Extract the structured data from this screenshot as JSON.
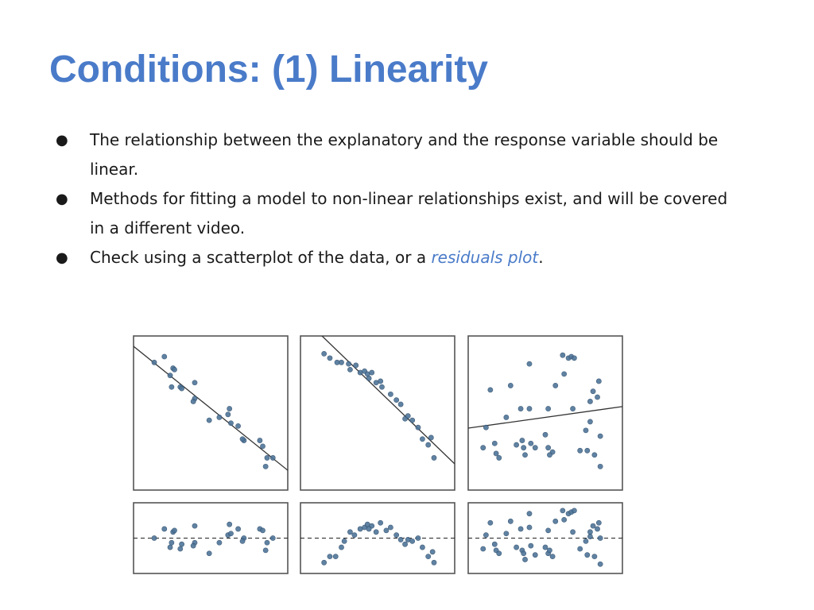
{
  "slide": {
    "title": "Conditions: (1) Linearity",
    "bullets": [
      {
        "text": "The relationship between the explanatory and the response variable should be linear."
      },
      {
        "text": "Methods for fitting a model to non-linear relationships exist, and will be covered in a different video."
      },
      {
        "text_before": "Check using a scatterplot of the data, or a ",
        "link_text": "residuals plot",
        "text_after": "."
      }
    ],
    "bullet_glyph": "●"
  },
  "colors": {
    "title": "#4a7bc9",
    "link": "#4a7bc9",
    "point_fill": "#4f7599",
    "frame": "#555555"
  },
  "chart_data": [
    {
      "type": "scatter",
      "panel": "scatter-linear",
      "title": "",
      "xlabel": "",
      "ylabel": "",
      "xlim": [
        0,
        10
      ],
      "ylim": [
        0,
        10
      ],
      "fit_line": [
        [
          0,
          9.35
        ],
        [
          10,
          1.3
        ]
      ],
      "points": [
        [
          1.1,
          8.5
        ],
        [
          1.8,
          8.9
        ],
        [
          2.2,
          7.6
        ],
        [
          2.4,
          8.1
        ],
        [
          2.5,
          8.0
        ],
        [
          2.3,
          6.8
        ],
        [
          2.9,
          6.8
        ],
        [
          3.0,
          6.7
        ],
        [
          3.9,
          7.1
        ],
        [
          3.9,
          6.0
        ],
        [
          3.8,
          5.8
        ],
        [
          4.9,
          4.5
        ],
        [
          5.6,
          4.7
        ],
        [
          6.2,
          4.9
        ],
        [
          6.3,
          5.3
        ],
        [
          6.4,
          4.3
        ],
        [
          6.9,
          4.1
        ],
        [
          7.3,
          3.1
        ],
        [
          7.2,
          3.2
        ],
        [
          8.4,
          3.1
        ],
        [
          8.6,
          2.7
        ],
        [
          8.9,
          1.9
        ],
        [
          9.3,
          1.9
        ],
        [
          8.8,
          1.3
        ]
      ],
      "grid": false
    },
    {
      "type": "scatter",
      "panel": "scatter-curved",
      "title": "",
      "xlabel": "",
      "ylabel": "",
      "xlim": [
        0,
        10
      ],
      "ylim": [
        0,
        10
      ],
      "fit_line": [
        [
          1.5,
          10
        ],
        [
          10,
          1.8
        ]
      ],
      "points": [
        [
          1.3,
          9.1
        ],
        [
          1.7,
          8.8
        ],
        [
          2.2,
          8.5
        ],
        [
          2.5,
          8.5
        ],
        [
          3.0,
          8.4
        ],
        [
          3.5,
          8.3
        ],
        [
          3.1,
          8.0
        ],
        [
          3.8,
          7.8
        ],
        [
          4.1,
          7.9
        ],
        [
          4.3,
          7.7
        ],
        [
          4.6,
          7.8
        ],
        [
          4.4,
          7.4
        ],
        [
          5.2,
          7.2
        ],
        [
          4.9,
          7.1
        ],
        [
          5.3,
          6.8
        ],
        [
          5.9,
          6.3
        ],
        [
          6.3,
          5.9
        ],
        [
          6.6,
          5.6
        ],
        [
          6.9,
          4.6
        ],
        [
          7.1,
          4.8
        ],
        [
          7.4,
          4.5
        ],
        [
          7.8,
          4.0
        ],
        [
          8.1,
          3.2
        ],
        [
          8.7,
          3.3
        ],
        [
          8.5,
          2.8
        ],
        [
          8.9,
          1.9
        ]
      ],
      "grid": false
    },
    {
      "type": "scatter",
      "panel": "scatter-random",
      "title": "",
      "xlabel": "",
      "ylabel": "",
      "xlim": [
        0,
        10
      ],
      "ylim": [
        0,
        10
      ],
      "fit_line": [
        [
          0,
          4.0
        ],
        [
          10,
          5.4
        ]
      ],
      "points": [
        [
          6.2,
          9.0
        ],
        [
          6.6,
          8.8
        ],
        [
          6.8,
          8.9
        ],
        [
          7.0,
          8.8
        ],
        [
          3.9,
          8.4
        ],
        [
          6.3,
          7.7
        ],
        [
          8.7,
          7.2
        ],
        [
          2.6,
          6.9
        ],
        [
          5.7,
          6.9
        ],
        [
          1.2,
          6.6
        ],
        [
          8.3,
          6.5
        ],
        [
          8.6,
          6.1
        ],
        [
          8.1,
          5.8
        ],
        [
          5.2,
          5.3
        ],
        [
          6.9,
          5.3
        ],
        [
          3.3,
          5.3
        ],
        [
          3.9,
          5.3
        ],
        [
          2.3,
          4.7
        ],
        [
          0.9,
          4.0
        ],
        [
          8.1,
          4.4
        ],
        [
          7.8,
          3.8
        ],
        [
          3.4,
          3.1
        ],
        [
          5.0,
          3.5
        ],
        [
          8.8,
          3.4
        ],
        [
          1.5,
          2.9
        ],
        [
          3.0,
          2.8
        ],
        [
          3.5,
          2.6
        ],
        [
          5.2,
          2.6
        ],
        [
          7.4,
          2.4
        ],
        [
          0.7,
          2.6
        ],
        [
          4.0,
          2.9
        ],
        [
          7.9,
          2.4
        ],
        [
          3.6,
          2.1
        ],
        [
          4.3,
          2.6
        ],
        [
          1.6,
          2.2
        ],
        [
          5.5,
          2.3
        ],
        [
          8.4,
          2.1
        ],
        [
          5.3,
          2.1
        ],
        [
          1.8,
          1.9
        ],
        [
          8.8,
          1.3
        ]
      ],
      "grid": false
    },
    {
      "type": "scatter",
      "panel": "residuals-linear",
      "title": "",
      "xlabel": "",
      "ylabel": "",
      "xlim": [
        0,
        10
      ],
      "ylim": [
        -1,
        1
      ],
      "reference_line": 0,
      "points": [
        [
          1.1,
          0.0
        ],
        [
          1.8,
          0.3
        ],
        [
          2.2,
          -0.3
        ],
        [
          2.4,
          0.2
        ],
        [
          2.5,
          0.25
        ],
        [
          2.3,
          -0.15
        ],
        [
          2.9,
          -0.35
        ],
        [
          3.0,
          -0.2
        ],
        [
          3.9,
          0.4
        ],
        [
          3.9,
          -0.15
        ],
        [
          3.8,
          -0.25
        ],
        [
          4.9,
          -0.5
        ],
        [
          5.6,
          -0.15
        ],
        [
          6.2,
          0.1
        ],
        [
          6.3,
          0.45
        ],
        [
          6.4,
          0.15
        ],
        [
          6.9,
          0.3
        ],
        [
          7.3,
          0.0
        ],
        [
          7.2,
          -0.1
        ],
        [
          8.4,
          0.3
        ],
        [
          8.6,
          0.25
        ],
        [
          8.9,
          -0.15
        ],
        [
          9.3,
          0.0
        ],
        [
          8.8,
          -0.4
        ]
      ],
      "grid": false
    },
    {
      "type": "scatter",
      "panel": "residuals-curved",
      "title": "",
      "xlabel": "",
      "ylabel": "",
      "xlim": [
        0,
        10
      ],
      "ylim": [
        -1,
        1
      ],
      "reference_line": 0,
      "points": [
        [
          1.3,
          -0.8
        ],
        [
          1.7,
          -0.6
        ],
        [
          2.1,
          -0.6
        ],
        [
          2.5,
          -0.3
        ],
        [
          2.7,
          -0.1
        ],
        [
          3.1,
          0.2
        ],
        [
          3.4,
          0.1
        ],
        [
          3.8,
          0.3
        ],
        [
          4.1,
          0.35
        ],
        [
          4.3,
          0.45
        ],
        [
          4.6,
          0.4
        ],
        [
          4.4,
          0.3
        ],
        [
          5.2,
          0.5
        ],
        [
          4.9,
          0.2
        ],
        [
          5.6,
          0.25
        ],
        [
          5.9,
          0.35
        ],
        [
          6.3,
          0.1
        ],
        [
          6.6,
          -0.05
        ],
        [
          6.9,
          -0.2
        ],
        [
          7.1,
          -0.05
        ],
        [
          7.4,
          -0.1
        ],
        [
          7.8,
          0.0
        ],
        [
          8.1,
          -0.3
        ],
        [
          8.5,
          -0.6
        ],
        [
          8.8,
          -0.45
        ],
        [
          8.9,
          -0.8
        ]
      ],
      "grid": false
    },
    {
      "type": "scatter",
      "panel": "residuals-random",
      "title": "",
      "xlabel": "",
      "ylabel": "",
      "xlim": [
        0,
        10
      ],
      "ylim": [
        -1,
        1
      ],
      "reference_line": 0,
      "points": [
        [
          6.2,
          0.9
        ],
        [
          6.6,
          0.8
        ],
        [
          6.8,
          0.85
        ],
        [
          7.0,
          0.9
        ],
        [
          3.9,
          0.8
        ],
        [
          6.3,
          0.6
        ],
        [
          8.7,
          0.5
        ],
        [
          2.6,
          0.55
        ],
        [
          5.7,
          0.55
        ],
        [
          1.2,
          0.5
        ],
        [
          8.3,
          0.4
        ],
        [
          8.6,
          0.3
        ],
        [
          8.1,
          0.2
        ],
        [
          5.2,
          0.25
        ],
        [
          6.9,
          0.2
        ],
        [
          3.3,
          0.3
        ],
        [
          3.9,
          0.35
        ],
        [
          2.3,
          0.15
        ],
        [
          0.9,
          0.1
        ],
        [
          8.1,
          0.05
        ],
        [
          7.8,
          -0.1
        ],
        [
          3.4,
          -0.4
        ],
        [
          5.0,
          -0.3
        ],
        [
          8.8,
          0.0
        ],
        [
          1.5,
          -0.2
        ],
        [
          3.0,
          -0.3
        ],
        [
          3.5,
          -0.5
        ],
        [
          5.2,
          -0.5
        ],
        [
          7.4,
          -0.35
        ],
        [
          0.7,
          -0.35
        ],
        [
          4.0,
          -0.25
        ],
        [
          7.9,
          -0.55
        ],
        [
          3.6,
          -0.7
        ],
        [
          4.3,
          -0.55
        ],
        [
          1.6,
          -0.4
        ],
        [
          5.5,
          -0.6
        ],
        [
          8.4,
          -0.6
        ],
        [
          5.3,
          -0.4
        ],
        [
          1.8,
          -0.5
        ],
        [
          8.8,
          -0.85
        ]
      ],
      "grid": false
    }
  ]
}
